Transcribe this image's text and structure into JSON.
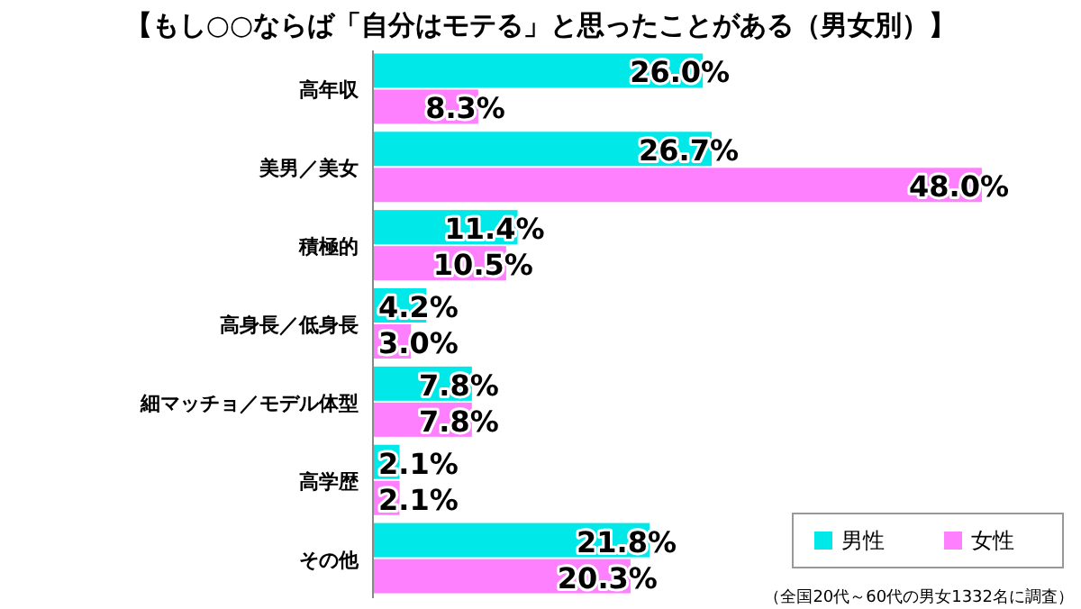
{
  "chart_data": {
    "type": "bar",
    "orientation": "horizontal",
    "title": "【もし○○ならば「自分はモテる」と思ったことがある（男女別）】",
    "categories": [
      "高年収",
      "美男／美女",
      "積極的",
      "高身長／低身長",
      "細マッチョ／モデル体型",
      "高学歴",
      "その他"
    ],
    "series": [
      {
        "name": "男性",
        "color": "#00e8e8",
        "values": [
          26.0,
          26.7,
          11.4,
          4.2,
          7.8,
          2.1,
          21.8
        ],
        "value_labels": [
          "26.0%",
          "26.7%",
          "11.4%",
          "4.2%",
          "7.8%",
          "2.1%",
          "21.8%"
        ]
      },
      {
        "name": "女性",
        "color": "#ff80ff",
        "values": [
          8.3,
          48.0,
          10.5,
          3.0,
          7.8,
          2.1,
          20.3
        ],
        "value_labels": [
          "8.3%",
          "48.0%",
          "10.5%",
          "3.0%",
          "7.8%",
          "2.1%",
          "20.3%"
        ]
      }
    ],
    "legend": "bottom right",
    "annotations": [
      "（全国20代～60代の男女1332名に調査）"
    ]
  }
}
